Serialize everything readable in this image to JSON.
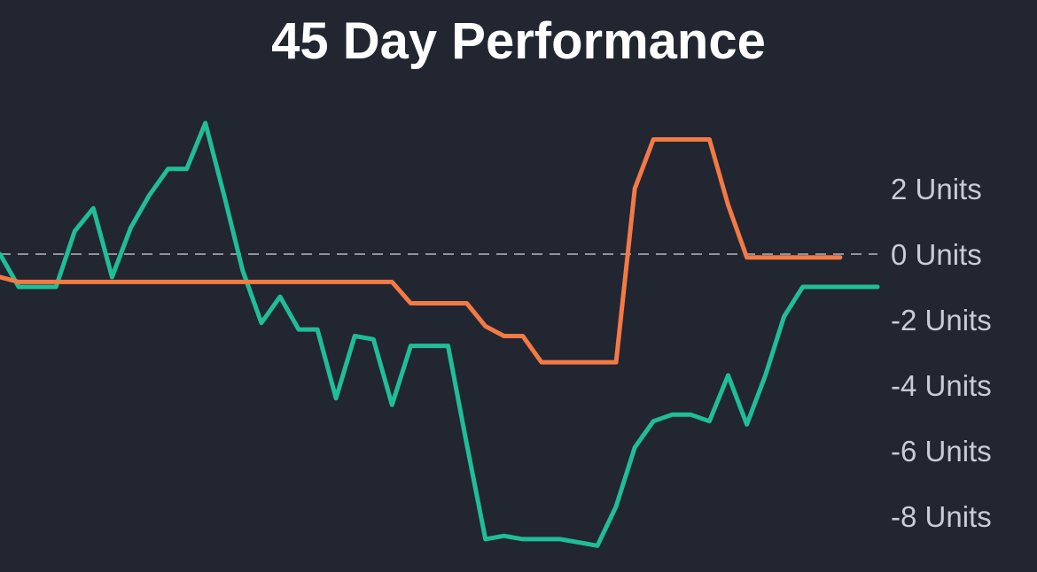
{
  "chart_data": {
    "type": "line",
    "title": "45 Day Performance",
    "xlabel": "",
    "ylabel": "",
    "y_unit_suffix": " Units",
    "ylim": [
      -9.2,
      4.2
    ],
    "xlim": [
      0,
      47
    ],
    "grid": false,
    "legend": "none",
    "y_axis_side": "right",
    "yticks": [
      2,
      0,
      -2,
      -4,
      -6,
      -8
    ],
    "ytick_labels": [
      "2 Units",
      "0 Units",
      "-2 Units",
      "-4 Units",
      "-6 Units",
      "-8 Units"
    ],
    "reference_line": {
      "y": 0,
      "style": "dashed",
      "color": "#8f949d"
    },
    "x": [
      0,
      1,
      2,
      3,
      4,
      5,
      6,
      7,
      8,
      9,
      10,
      11,
      12,
      13,
      14,
      15,
      16,
      17,
      18,
      19,
      20,
      21,
      22,
      23,
      24,
      25,
      26,
      27,
      28,
      29,
      30,
      31,
      32,
      33,
      34,
      35,
      36,
      37,
      38,
      39,
      40,
      41,
      42,
      43,
      44,
      45,
      46,
      47
    ],
    "series": [
      {
        "color": "#1fbe98",
        "x": [
          0,
          1,
          2,
          3,
          4,
          5,
          6,
          7,
          8,
          9,
          10,
          11,
          12,
          13,
          14,
          15,
          16,
          17,
          18,
          19,
          20,
          21,
          22,
          23,
          24,
          25,
          26,
          27,
          28,
          29,
          30,
          31,
          32,
          33,
          34,
          35,
          36,
          37,
          38,
          39,
          40,
          41,
          42,
          43,
          44,
          45,
          46,
          47
        ],
        "values": [
          0,
          -1,
          -1,
          -1,
          0.7,
          1.4,
          -0.7,
          0.8,
          1.8,
          2.6,
          2.6,
          4,
          1.8,
          -0.5,
          -2.1,
          -1.3,
          -2.3,
          -2.3,
          -4.4,
          -2.5,
          -2.6,
          -4.6,
          -2.8,
          -2.8,
          -2.8,
          -5.8,
          -8.7,
          -8.6,
          -8.7,
          -8.7,
          -8.7,
          -8.8,
          -8.9,
          -7.7,
          -5.9,
          -5.1,
          -4.9,
          -4.9,
          -5.1,
          -3.7,
          -5.2,
          -3.7,
          -1.9,
          -1,
          -1,
          -1,
          -1,
          -1
        ]
      },
      {
        "color": "#f47a45",
        "x": [
          0,
          1,
          2,
          3,
          4,
          5,
          6,
          7,
          8,
          9,
          10,
          11,
          12,
          13,
          14,
          15,
          16,
          17,
          18,
          19,
          20,
          21,
          22,
          23,
          24,
          25,
          26,
          27,
          28,
          29,
          30,
          31,
          32,
          33,
          34,
          35,
          36,
          37,
          38,
          39,
          40,
          41,
          42,
          43,
          44,
          45
        ],
        "values": [
          -0.7,
          -0.85,
          -0.85,
          -0.85,
          -0.85,
          -0.85,
          -0.85,
          -0.85,
          -0.85,
          -0.85,
          -0.85,
          -0.85,
          -0.85,
          -0.85,
          -0.85,
          -0.85,
          -0.85,
          -0.85,
          -0.85,
          -0.85,
          -0.85,
          -0.85,
          -1.5,
          -1.5,
          -1.5,
          -1.5,
          -2.2,
          -2.5,
          -2.5,
          -3.3,
          -3.3,
          -3.3,
          -3.3,
          -3.3,
          2,
          3.5,
          3.5,
          3.5,
          3.5,
          1.5,
          -0.1,
          -0.1,
          -0.1,
          -0.1,
          -0.1,
          -0.1
        ]
      }
    ]
  }
}
